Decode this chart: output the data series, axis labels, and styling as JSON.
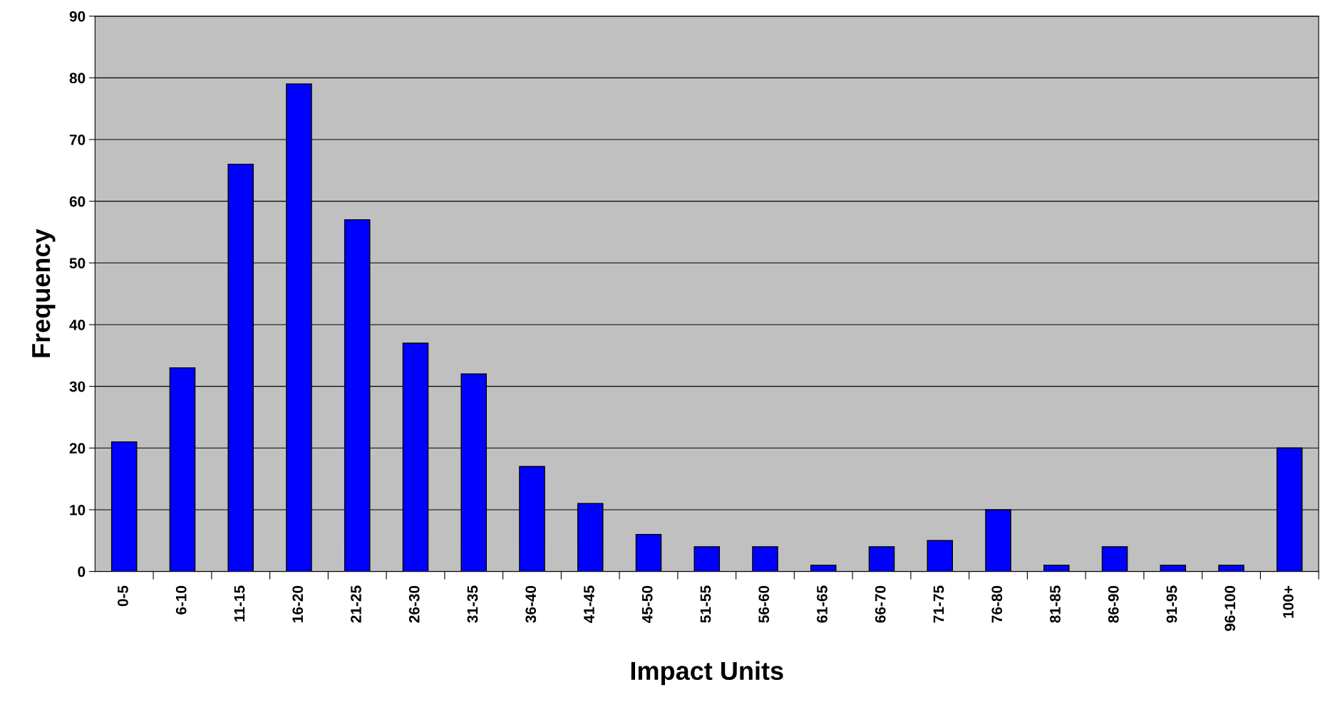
{
  "chart_data": {
    "type": "bar",
    "xlabel": "Impact Units",
    "ylabel": "Frequency",
    "categories": [
      "0-5",
      "6-10",
      "11-15",
      "16-20",
      "21-25",
      "26-30",
      "31-35",
      "36-40",
      "41-45",
      "45-50",
      "51-55",
      "56-60",
      "61-65",
      "66-70",
      "71-75",
      "76-80",
      "81-85",
      "86-90",
      "91-95",
      "96-100",
      "100+"
    ],
    "values": [
      21,
      33,
      66,
      79,
      57,
      37,
      32,
      17,
      11,
      6,
      4,
      4,
      1,
      4,
      5,
      10,
      1,
      4,
      1,
      1,
      20
    ],
    "color": "#0000ff",
    "ylim": [
      0,
      90
    ],
    "yticks": [
      0,
      10,
      20,
      30,
      40,
      50,
      60,
      70,
      80,
      90
    ],
    "grid": "y"
  }
}
